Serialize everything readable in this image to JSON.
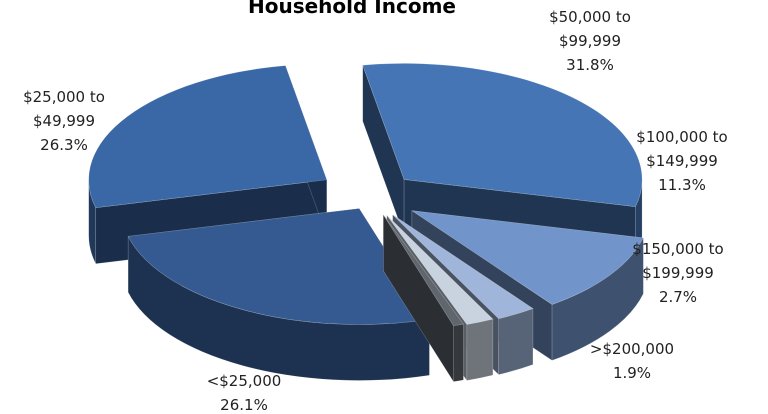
{
  "chart_data": {
    "type": "pie",
    "title": "Household Income",
    "style": "3d-exploded",
    "slices": [
      {
        "label_lines": [
          "$50,000 to",
          "$99,999",
          "31.8%"
        ],
        "value": 31.8,
        "color": "#4575B4"
      },
      {
        "label_lines": [
          "$100,000 to",
          "$149,999",
          "11.3%"
        ],
        "value": 11.3,
        "color": "#7194CA"
      },
      {
        "label_lines": [
          "$150,000 to",
          "$199,999",
          "2.7%"
        ],
        "value": 2.7,
        "color": "#9FB6DA"
      },
      {
        "label_lines": [
          ">$200,000",
          "1.9%"
        ],
        "value": 1.9,
        "color": "#C9D3E0"
      },
      {
        "label_lines": [],
        "value": 0.7,
        "color": "#60666E"
      },
      {
        "label_lines": [
          "<$25,000",
          "26.1%"
        ],
        "value": 26.1,
        "color": "#355A92"
      },
      {
        "label_lines": [
          "$25,000 to",
          "$49,999",
          "26.3%"
        ],
        "value": 26.3,
        "color": "#3A67A6"
      }
    ]
  }
}
